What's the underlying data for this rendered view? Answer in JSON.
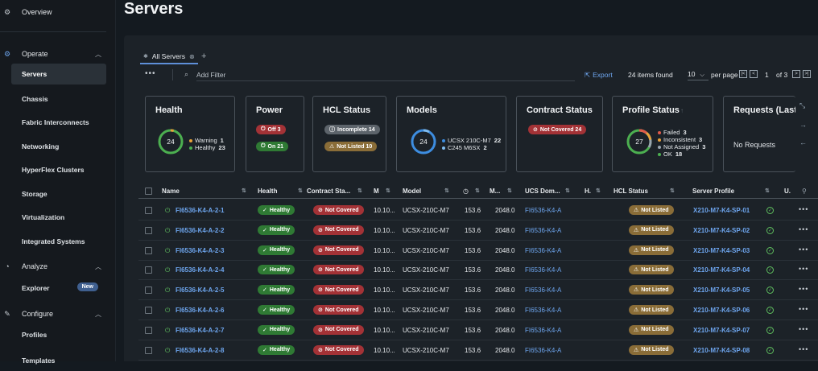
{
  "sidebar": {
    "overview": "Overview",
    "sections": [
      {
        "label": "Operate",
        "items": [
          "Servers",
          "Chassis",
          "Fabric Interconnects",
          "Networking",
          "HyperFlex Clusters",
          "Storage",
          "Virtualization",
          "Integrated Systems"
        ]
      },
      {
        "label": "Analyze",
        "items": [
          "Explorer"
        ],
        "badge": "New"
      },
      {
        "label": "Configure",
        "items": [
          "Profiles",
          "Templates"
        ]
      }
    ],
    "active": "Servers"
  },
  "page": {
    "title": "Servers"
  },
  "tabs": {
    "active": "All Servers"
  },
  "toolbar": {
    "filter_placeholder": "Add Filter",
    "export": "Export",
    "items_found": "24 items found",
    "per_page": "10",
    "per_page_label": "per page",
    "page": "1",
    "of_pages": "of 3"
  },
  "cards": {
    "health": {
      "title": "Health",
      "total": "24",
      "legend": [
        {
          "label": "Warning",
          "value": "1",
          "color": "#e8a33a"
        },
        {
          "label": "Healthy",
          "value": "23",
          "color": "#4caf50"
        }
      ]
    },
    "power": {
      "title": "Power",
      "off": "Off 3",
      "on": "On 21"
    },
    "hcl": {
      "title": "HCL Status",
      "incomplete": "Incomplete 14",
      "not_listed": "Not Listed 10"
    },
    "models": {
      "title": "Models",
      "total": "24",
      "legend": [
        {
          "label": "UCSX 210C-M7",
          "value": "22",
          "color": "#3d8de0"
        },
        {
          "label": "C245 M6SX",
          "value": "2",
          "color": "#7fbcf0"
        }
      ]
    },
    "contract": {
      "title": "Contract Status",
      "not_covered": "Not Covered 24"
    },
    "profile": {
      "title": "Profile Status",
      "total": "27",
      "legend": [
        {
          "label": "Failed",
          "value": "3",
          "color": "#e05a4a"
        },
        {
          "label": "Inconsistent",
          "value": "3",
          "color": "#e8a33a"
        },
        {
          "label": "Not Assigned",
          "value": "3",
          "color": "#9aa5af"
        },
        {
          "label": "OK",
          "value": "18",
          "color": "#4caf50"
        }
      ]
    },
    "requests": {
      "title": "Requests (Last",
      "empty": "No Requests"
    }
  },
  "table": {
    "columns": [
      "Name",
      "Health",
      "Contract Sta...",
      "M",
      "Model",
      "",
      "M...",
      "UCS Dom...",
      "H.",
      "HCL Status",
      "Server Profile",
      "U."
    ],
    "rows": [
      {
        "name": "FI6536-K4-A-2-1",
        "health": "Healthy",
        "contract": "Not Covered",
        "mgmt": "10.10...",
        "model": "UCSX-210C-M7",
        "cpu": "153.6",
        "mem": "2048.0",
        "domain": "FI6536-K4-A",
        "hcl": "Not Listed",
        "profile": "X210-M7-K4-SP-01"
      },
      {
        "name": "FI6536-K4-A-2-2",
        "health": "Healthy",
        "contract": "Not Covered",
        "mgmt": "10.10...",
        "model": "UCSX-210C-M7",
        "cpu": "153.6",
        "mem": "2048.0",
        "domain": "FI6536-K4-A",
        "hcl": "Not Listed",
        "profile": "X210-M7-K4-SP-02"
      },
      {
        "name": "FI6536-K4-A-2-3",
        "health": "Healthy",
        "contract": "Not Covered",
        "mgmt": "10.10...",
        "model": "UCSX-210C-M7",
        "cpu": "153.6",
        "mem": "2048.0",
        "domain": "FI6536-K4-A",
        "hcl": "Not Listed",
        "profile": "X210-M7-K4-SP-03"
      },
      {
        "name": "FI6536-K4-A-2-4",
        "health": "Healthy",
        "contract": "Not Covered",
        "mgmt": "10.10...",
        "model": "UCSX-210C-M7",
        "cpu": "153.6",
        "mem": "2048.0",
        "domain": "FI6536-K4-A",
        "hcl": "Not Listed",
        "profile": "X210-M7-K4-SP-04"
      },
      {
        "name": "FI6536-K4-A-2-5",
        "health": "Healthy",
        "contract": "Not Covered",
        "mgmt": "10.10...",
        "model": "UCSX-210C-M7",
        "cpu": "153.6",
        "mem": "2048.0",
        "domain": "FI6536-K4-A",
        "hcl": "Not Listed",
        "profile": "X210-M7-K4-SP-05"
      },
      {
        "name": "FI6536-K4-A-2-6",
        "health": "Healthy",
        "contract": "Not Covered",
        "mgmt": "10.10...",
        "model": "UCSX-210C-M7",
        "cpu": "153.6",
        "mem": "2048.0",
        "domain": "FI6536-K4-A",
        "hcl": "Not Listed",
        "profile": "X210-M7-K4-SP-06"
      },
      {
        "name": "FI6536-K4-A-2-7",
        "health": "Healthy",
        "contract": "Not Covered",
        "mgmt": "10.10...",
        "model": "UCSX-210C-M7",
        "cpu": "153.6",
        "mem": "2048.0",
        "domain": "FI6536-K4-A",
        "hcl": "Not Listed",
        "profile": "X210-M7-K4-SP-07"
      },
      {
        "name": "FI6536-K4-A-2-8",
        "health": "Healthy",
        "contract": "Not Covered",
        "mgmt": "10.10...",
        "model": "UCSX-210C-M7",
        "cpu": "153.6",
        "mem": "2048.0",
        "domain": "FI6536-K4-A",
        "hcl": "Not Listed",
        "profile": "X210-M7-K4-SP-08"
      }
    ]
  }
}
